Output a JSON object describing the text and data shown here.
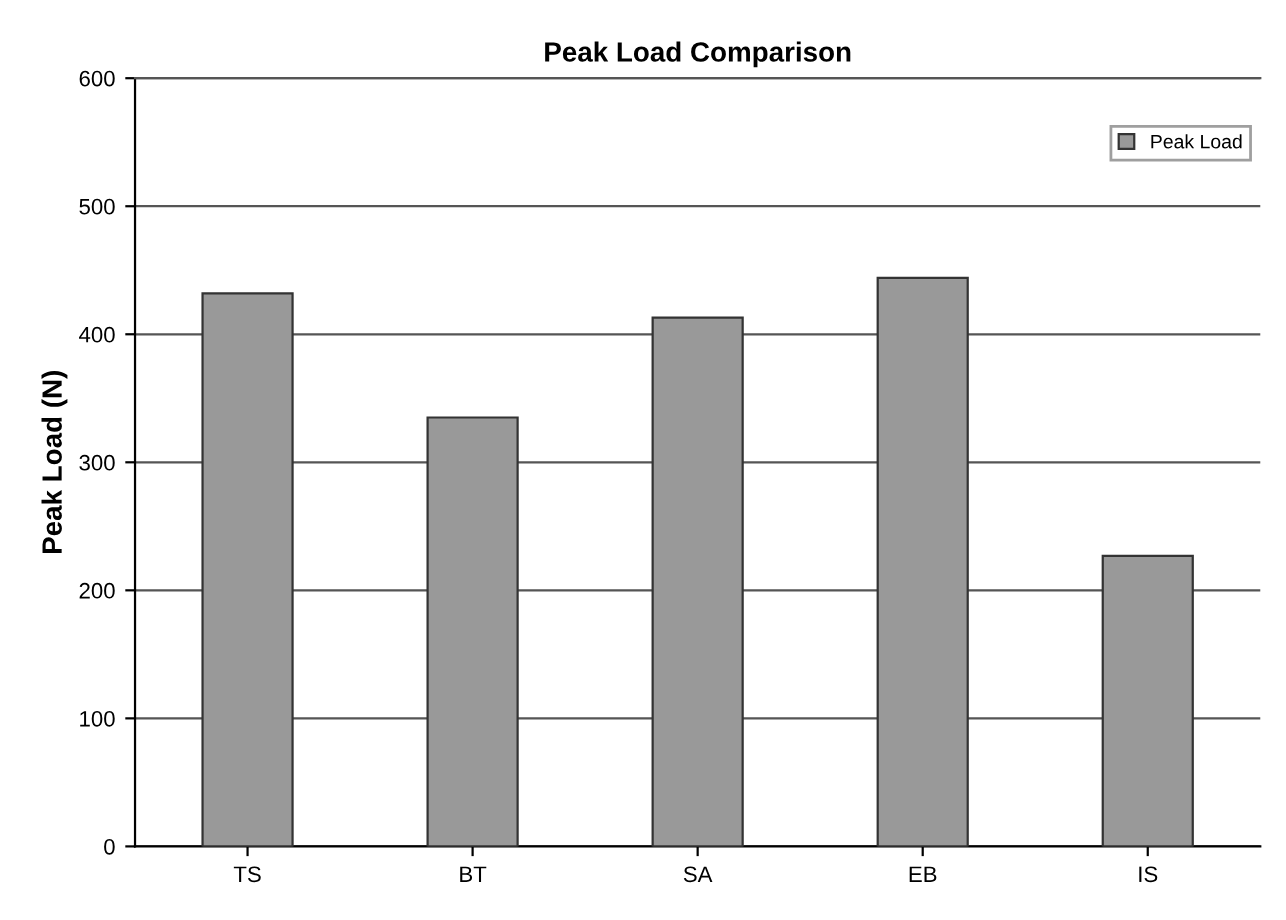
{
  "chart_data": {
    "type": "bar",
    "title": "Peak Load Comparison",
    "ylabel": "Peak Load (N)",
    "categories": [
      "TS",
      "BT",
      "SA",
      "EB",
      "IS"
    ],
    "series": [
      {
        "name": "Peak Load",
        "color": "#999999",
        "values": [
          432,
          335,
          413,
          444,
          227
        ]
      }
    ],
    "ylim": [
      0,
      600
    ],
    "yticks": [
      0,
      100,
      200,
      300,
      400,
      500,
      600
    ],
    "grid": "y",
    "legend": "top right"
  }
}
